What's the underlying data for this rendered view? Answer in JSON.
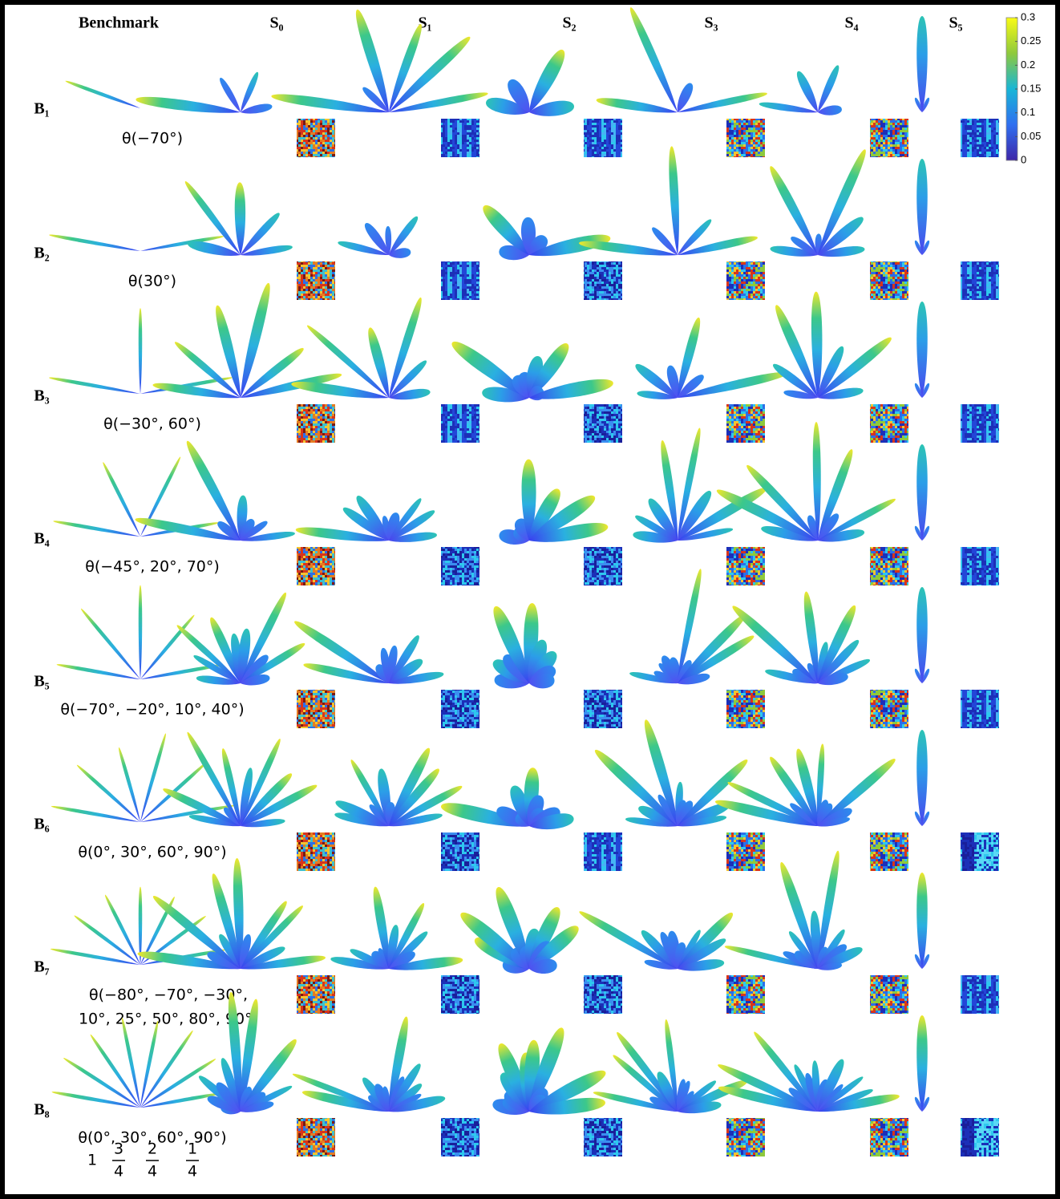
{
  "header": {
    "benchmark": "Benchmark",
    "schemes": [
      "S₀",
      "S₁",
      "S₂",
      "S₃",
      "S₄",
      "S₅"
    ]
  },
  "rows": [
    {
      "label": "B₁",
      "angles": [
        "θ(−70°)"
      ]
    },
    {
      "label": "B₂",
      "angles": [
        "θ(30°)"
      ]
    },
    {
      "label": "B₃",
      "angles": [
        "θ(−30°, 60°)"
      ]
    },
    {
      "label": "B₄",
      "angles": [
        "θ(−45°, 20°, 70°)"
      ]
    },
    {
      "label": "B₅",
      "angles": [
        "θ(−70°, −20°, 10°, 40°)"
      ]
    },
    {
      "label": "B₆",
      "angles": [
        "θ(0°, 30°, 60°, 90°)"
      ]
    },
    {
      "label": "B₇",
      "angles": [
        "θ(−80°, −70°, −30°,",
        "10°, 25°, 50°, 80°, 90°)"
      ]
    },
    {
      "label": "B₈",
      "angles": [
        "θ(0°, 30°, 60°, 90°)"
      ],
      "weights": [
        "1",
        [
          "3",
          "4"
        ],
        [
          "2",
          "4"
        ],
        [
          "1",
          "4"
        ]
      ]
    }
  ],
  "colorbar": {
    "lim": [
      0,
      0.3
    ],
    "ticks": [
      0.3,
      0.25,
      0.2,
      0.15,
      0.1,
      0.05,
      0
    ]
  }
}
